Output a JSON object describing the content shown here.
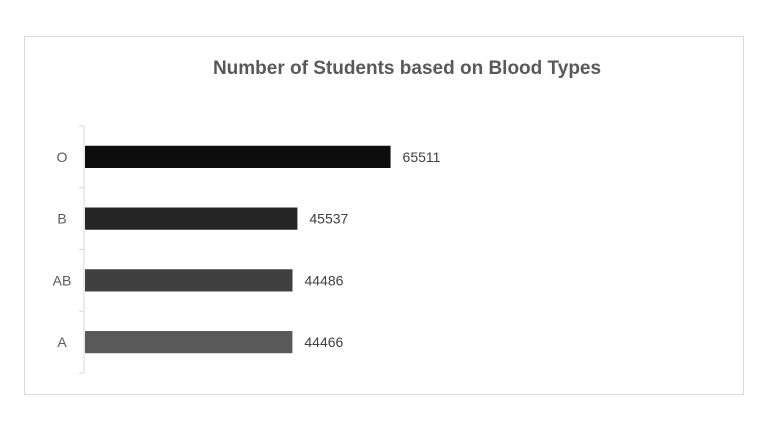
{
  "chart_data": {
    "type": "bar",
    "orientation": "horizontal",
    "title": "Number of Students based on Blood Types",
    "xlabel": "",
    "ylabel": "",
    "categories": [
      "O",
      "B",
      "AB",
      "A"
    ],
    "values": [
      65511,
      45537,
      44486,
      44466
    ],
    "colors": [
      "#0d0d0d",
      "#262626",
      "#404040",
      "#595959"
    ],
    "grid": false,
    "legend": "none",
    "data_labels": true
  }
}
